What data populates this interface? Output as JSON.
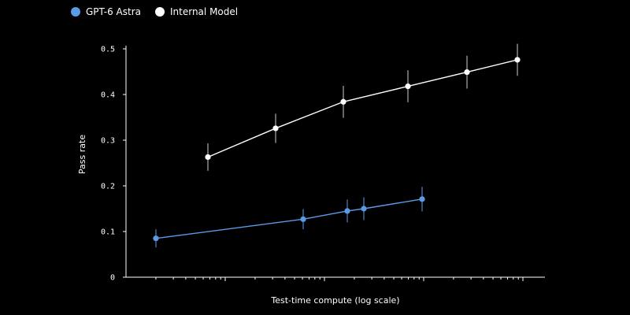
{
  "chart_data": {
    "type": "line",
    "title": "",
    "xlabel": "Test-time compute (log scale)",
    "ylabel": "Pass rate",
    "x_scale": "log",
    "x_tick_labels_shown": false,
    "ylim": [
      0,
      0.5
    ],
    "yticks": [
      "0",
      "0.1",
      "0.2",
      "0.3",
      "0.4",
      "0.5"
    ],
    "grid": false,
    "legend_position": "top-left",
    "series": [
      {
        "name": "GPT-6 Astra",
        "color": "#5b9be6",
        "points": [
          {
            "y": 0.085,
            "err": 0.02
          },
          {
            "y": 0.127,
            "err": 0.022
          },
          {
            "y": 0.145,
            "err": 0.025
          },
          {
            "y": 0.15,
            "err": 0.025
          },
          {
            "y": 0.171,
            "err": 0.027
          }
        ]
      },
      {
        "name": "Internal Model",
        "color": "#ffffff",
        "points": [
          {
            "y": 0.263,
            "err": 0.03
          },
          {
            "y": 0.326,
            "err": 0.032
          },
          {
            "y": 0.384,
            "err": 0.035
          },
          {
            "y": 0.418,
            "err": 0.035
          },
          {
            "y": 0.449,
            "err": 0.036
          },
          {
            "y": 0.476,
            "err": 0.035
          }
        ]
      }
    ]
  }
}
